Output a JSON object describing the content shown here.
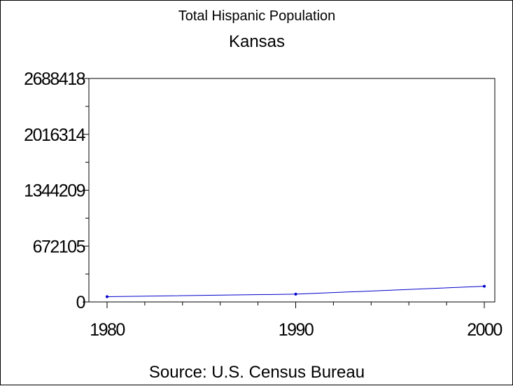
{
  "chart_data": {
    "type": "line",
    "title": "Total Hispanic Population",
    "subtitle": "Kansas",
    "footnote": "Source: U.S. Census Bureau",
    "x": [
      1980,
      1990,
      2000
    ],
    "series": [
      {
        "values": [
          63339,
          93670,
          188252
        ]
      }
    ],
    "xticks": [
      "1980",
      "1990",
      "2000"
    ],
    "yticks": [
      "0",
      "672105",
      "1344209",
      "2016314",
      "2688418"
    ],
    "xlim": [
      1980,
      2000
    ],
    "ylim": [
      0,
      2688418
    ],
    "grid": false,
    "line_color": "#0000cc",
    "axis_color": "#000000"
  }
}
